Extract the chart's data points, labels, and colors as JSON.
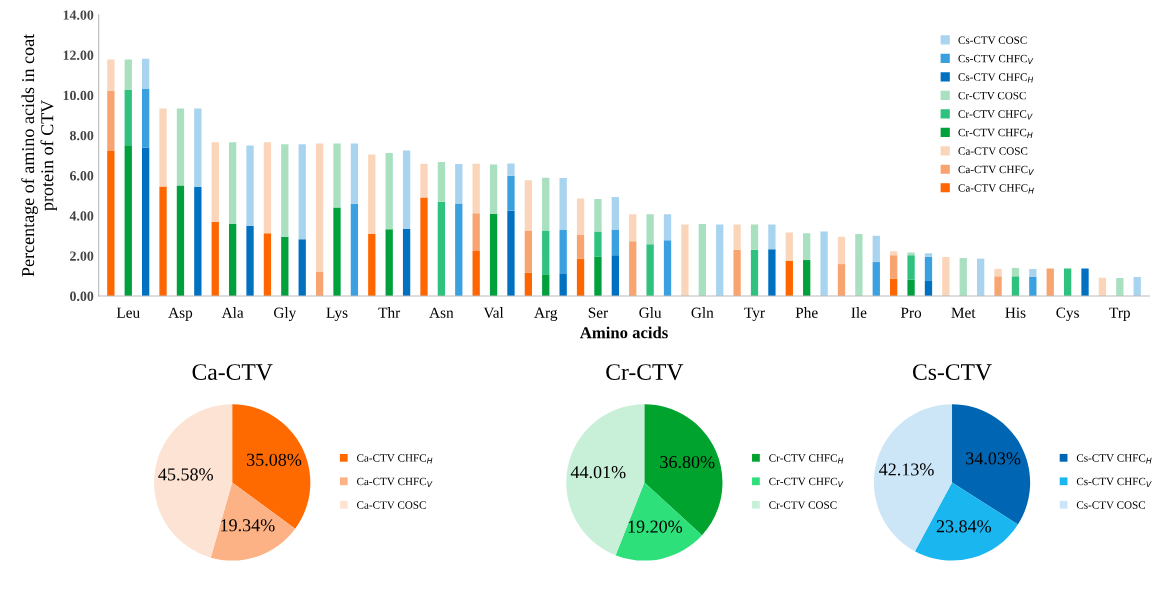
{
  "chart_data": [
    {
      "type": "bar",
      "stacked": true,
      "xlabel": "Amino acids",
      "ylabel": "Percentage of amino acids in coat\nprotein of CTV",
      "categories": [
        null,
        "Leu",
        null,
        null,
        "Asp",
        null,
        null,
        "Ala",
        null,
        null,
        "Gly",
        null,
        null,
        "Lys",
        null,
        null,
        "Thr",
        null,
        null,
        "Asn",
        null,
        null,
        "Val",
        null,
        null,
        "Arg",
        null,
        null,
        "Ser",
        null,
        null,
        "Glu",
        null,
        null,
        "Gln",
        null,
        null,
        "Tyr",
        null,
        null,
        "Phe",
        null,
        null,
        "Ile",
        null,
        null,
        "Pro",
        null,
        null,
        "Met",
        null,
        null,
        "His",
        null,
        null,
        "Cys",
        null,
        null,
        "Trp",
        null
      ],
      "ylim": [
        0,
        14
      ],
      "yticks": [
        {
          "value": 0,
          "label": "0.00"
        },
        {
          "value": 2,
          "label": "2.00"
        },
        {
          "value": 4,
          "label": "4.00"
        },
        {
          "value": 6,
          "label": "6.00"
        },
        {
          "value": 8,
          "label": "8.00"
        },
        {
          "value": 10,
          "label": "10.00"
        },
        {
          "value": 12,
          "label": "12.00"
        },
        {
          "value": 14,
          "label": "14.00"
        }
      ],
      "grid": false,
      "legend": "top right",
      "series": [
        {
          "name": "Ca-CTV CHFC$_{H}$",
          "color": "#ff6600",
          "values": [
            7.22,
            null,
            null,
            5.45,
            null,
            null,
            3.68,
            null,
            null,
            3.12,
            null,
            null,
            null,
            null,
            null,
            3.09,
            null,
            null,
            4.91,
            null,
            null,
            2.24,
            null,
            null,
            1.16,
            null,
            null,
            1.86,
            null,
            null,
            null,
            null,
            null,
            null,
            null,
            null,
            null,
            null,
            null,
            1.76,
            null,
            null,
            null,
            null,
            null,
            0.86,
            null,
            null,
            null,
            null,
            null,
            null,
            null,
            null,
            null,
            null,
            null,
            null,
            null,
            null
          ]
        },
        {
          "name": "Ca-CTV CHFC$_{V}$",
          "color": "#f8a470",
          "values": [
            2.99,
            null,
            null,
            null,
            null,
            null,
            null,
            null,
            null,
            null,
            null,
            null,
            1.2,
            null,
            null,
            null,
            null,
            null,
            null,
            null,
            null,
            1.88,
            null,
            null,
            2.1,
            null,
            null,
            1.18,
            null,
            null,
            2.72,
            null,
            null,
            null,
            null,
            null,
            2.3,
            null,
            null,
            null,
            null,
            null,
            1.59,
            null,
            null,
            1.17,
            null,
            null,
            null,
            null,
            null,
            0.98,
            null,
            null,
            1.37,
            null,
            null,
            null,
            null,
            null
          ]
        },
        {
          "name": "Ca-CTV COSC",
          "color": "#fbd5b9",
          "values": [
            1.57,
            null,
            null,
            3.88,
            null,
            null,
            3.98,
            null,
            null,
            4.54,
            null,
            null,
            6.39,
            null,
            null,
            3.96,
            null,
            null,
            1.67,
            null,
            null,
            2.46,
            null,
            null,
            2.5,
            null,
            null,
            1.82,
            null,
            null,
            1.35,
            null,
            null,
            3.56,
            null,
            null,
            1.26,
            null,
            null,
            1.4,
            null,
            null,
            1.36,
            null,
            null,
            0.2,
            null,
            null,
            1.94,
            null,
            null,
            0.37,
            null,
            null,
            null,
            null,
            null,
            0.91,
            null,
            null
          ]
        },
        {
          "name": "Cr-CTV CHFC$_{H}$",
          "color": "#00a03c",
          "values": [
            null,
            7.51,
            null,
            null,
            5.5,
            null,
            null,
            3.59,
            null,
            null,
            2.95,
            null,
            null,
            4.41,
            null,
            null,
            3.32,
            null,
            null,
            null,
            null,
            null,
            4.1,
            null,
            null,
            1.08,
            null,
            null,
            1.97,
            null,
            null,
            null,
            null,
            null,
            null,
            null,
            null,
            null,
            null,
            null,
            1.79,
            null,
            null,
            null,
            null,
            null,
            0.81,
            null,
            null,
            null,
            null,
            null,
            null,
            null,
            null,
            null,
            null,
            null,
            null,
            null
          ]
        },
        {
          "name": "Cr-CTV CHFC$_{V}$",
          "color": "#2ec27e",
          "values": [
            null,
            2.75,
            null,
            null,
            null,
            null,
            null,
            null,
            null,
            null,
            null,
            null,
            null,
            null,
            null,
            null,
            null,
            null,
            null,
            4.69,
            null,
            null,
            null,
            null,
            null,
            2.18,
            null,
            null,
            1.24,
            null,
            null,
            2.58,
            null,
            null,
            null,
            null,
            null,
            2.3,
            null,
            null,
            null,
            null,
            null,
            null,
            null,
            null,
            1.22,
            null,
            null,
            null,
            null,
            null,
            0.98,
            null,
            null,
            1.37,
            null,
            null,
            null,
            null
          ]
        },
        {
          "name": "Cr-CTV COSC",
          "color": "#a8e0c0",
          "values": [
            null,
            1.52,
            null,
            null,
            3.83,
            null,
            null,
            4.06,
            null,
            null,
            4.61,
            null,
            null,
            3.18,
            null,
            null,
            3.8,
            null,
            null,
            1.98,
            null,
            null,
            2.45,
            null,
            null,
            2.63,
            null,
            null,
            1.62,
            null,
            null,
            1.49,
            null,
            null,
            3.59,
            null,
            null,
            1.26,
            null,
            null,
            1.33,
            null,
            null,
            3.09,
            null,
            null,
            0.13,
            null,
            null,
            1.89,
            null,
            null,
            0.42,
            null,
            null,
            null,
            null,
            null,
            0.89,
            null
          ]
        },
        {
          "name": "Cs-CTV CHFC$_{H}$",
          "color": "#0070c0",
          "values": [
            null,
            null,
            7.39,
            null,
            null,
            5.43,
            null,
            null,
            3.49,
            null,
            null,
            2.82,
            null,
            null,
            null,
            null,
            null,
            3.34,
            null,
            null,
            null,
            null,
            null,
            4.24,
            null,
            null,
            1.13,
            null,
            null,
            2.03,
            null,
            null,
            null,
            null,
            null,
            null,
            null,
            null,
            2.33,
            null,
            null,
            null,
            null,
            null,
            null,
            null,
            null,
            0.78,
            null,
            null,
            null,
            null,
            null,
            null,
            null,
            null,
            1.37,
            null,
            null,
            null
          ]
        },
        {
          "name": "Cs-CTV CHFC$_{V}$",
          "color": "#3aa0e0",
          "values": [
            null,
            null,
            2.91,
            null,
            null,
            null,
            null,
            null,
            null,
            null,
            null,
            null,
            null,
            null,
            4.59,
            null,
            null,
            null,
            null,
            null,
            4.61,
            null,
            null,
            1.75,
            null,
            null,
            2.16,
            null,
            null,
            1.28,
            null,
            null,
            2.78,
            null,
            null,
            null,
            null,
            null,
            null,
            null,
            null,
            null,
            null,
            null,
            1.69,
            null,
            null,
            1.18,
            null,
            null,
            null,
            null,
            null,
            0.95,
            null,
            null,
            null,
            null,
            null,
            null
          ]
        },
        {
          "name": "Cs-CTV COSC",
          "color": "#a8d4f0",
          "values": [
            null,
            null,
            1.51,
            null,
            null,
            3.9,
            null,
            null,
            4.0,
            null,
            null,
            4.74,
            null,
            null,
            3.0,
            null,
            null,
            3.9,
            null,
            null,
            1.96,
            null,
            null,
            0.61,
            null,
            null,
            2.58,
            null,
            null,
            1.62,
            null,
            null,
            1.29,
            null,
            null,
            3.56,
            null,
            null,
            1.23,
            null,
            null,
            3.21,
            null,
            null,
            1.31,
            null,
            null,
            0.17,
            null,
            null,
            1.86,
            null,
            null,
            0.4,
            null,
            null,
            null,
            null,
            null,
            0.95
          ]
        }
      ]
    },
    {
      "type": "pie",
      "title": "Ca-CTV",
      "legend": "right",
      "categories": [
        "Ca-CTV CHFC$_{H}$",
        "Ca-CTV CHFC$_{V}$",
        "Ca-CTV COSC"
      ],
      "values": [
        35.08,
        19.34,
        45.58
      ],
      "value_labels": [
        "35.08%",
        "19.34%",
        "45.58%"
      ],
      "colors": [
        "#ff6a00",
        "#fcb285",
        "#fde3d3"
      ]
    },
    {
      "type": "pie",
      "title": "Cr-CTV",
      "legend": "right",
      "categories": [
        "Cr-CTV CHFC$_{H}$",
        "Cr-CTV CHFC$_{V}$",
        "Cr-CTV COSC"
      ],
      "values": [
        36.8,
        19.2,
        44.01
      ],
      "value_labels": [
        "36.80%",
        "19.20%",
        "44.01%"
      ],
      "colors": [
        "#00a32e",
        "#2ee07a",
        "#c8f0d8"
      ]
    },
    {
      "type": "pie",
      "title": "Cs-CTV",
      "legend": "right",
      "categories": [
        "Cs-CTV CHFC$_{H}$",
        "Cs-CTV CHFC$_{V}$",
        "Cs-CTV COSC"
      ],
      "values": [
        34.03,
        23.84,
        42.13
      ],
      "value_labels": [
        "34.03%",
        "23.84%",
        "42.13%"
      ],
      "colors": [
        "#0066b3",
        "#1ab6f0",
        "#cce6f8"
      ]
    }
  ]
}
